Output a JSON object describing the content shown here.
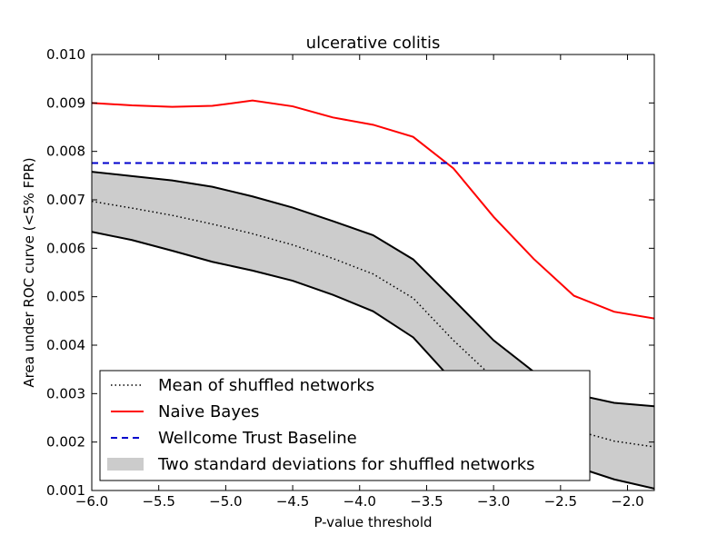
{
  "chart_data": {
    "type": "line",
    "title": "ulcerative colitis",
    "xlabel": "P-value threshold",
    "ylabel": "Area under ROC curve (<5% FPR)",
    "xlim": [
      -6.0,
      -1.8
    ],
    "ylim": [
      0.001,
      0.01
    ],
    "x_ticks": [
      -6.0,
      -5.5,
      -5.0,
      -4.5,
      -4.0,
      -3.5,
      -3.0,
      -2.5,
      -2.0
    ],
    "x_tick_labels": [
      "−6.0",
      "−5.5",
      "−5.0",
      "−4.5",
      "−4.0",
      "−3.5",
      "−3.0",
      "−2.5",
      "−2.0"
    ],
    "y_ticks": [
      0.001,
      0.002,
      0.003,
      0.004,
      0.005,
      0.006,
      0.007,
      0.008,
      0.009,
      0.01
    ],
    "y_tick_labels": [
      "0.001",
      "0.002",
      "0.003",
      "0.004",
      "0.005",
      "0.006",
      "0.007",
      "0.008",
      "0.009",
      "0.010"
    ],
    "grid": false,
    "legend_position": "lower-left",
    "series": [
      {
        "name": "Mean of shuffled networks",
        "style": "dotted",
        "color": "#000000",
        "x": [
          -6.0,
          -5.7,
          -5.4,
          -5.1,
          -4.8,
          -4.5,
          -4.2,
          -3.9,
          -3.6,
          -3.3,
          -3.0,
          -2.7,
          -2.4,
          -2.1,
          -1.8
        ],
        "y": [
          0.00697,
          0.00683,
          0.00668,
          0.0065,
          0.0063,
          0.00607,
          0.00579,
          0.00547,
          0.00497,
          0.0041,
          0.00332,
          0.00265,
          0.00225,
          0.00202,
          0.0019
        ]
      },
      {
        "name": "Naive Bayes",
        "style": "solid",
        "color": "#ff0000",
        "x": [
          -6.0,
          -5.7,
          -5.4,
          -5.1,
          -4.8,
          -4.5,
          -4.2,
          -3.9,
          -3.6,
          -3.3,
          -3.0,
          -2.7,
          -2.4,
          -2.1,
          -1.8
        ],
        "y": [
          0.009,
          0.00895,
          0.00892,
          0.00894,
          0.00905,
          0.00893,
          0.0087,
          0.00855,
          0.0083,
          0.00765,
          0.00665,
          0.00578,
          0.00502,
          0.00469,
          0.00455
        ]
      },
      {
        "name": "Wellcome Trust Baseline",
        "style": "dashed",
        "color": "#0000cc",
        "x": [
          -6.0,
          -1.8
        ],
        "y": [
          0.00776,
          0.00776
        ]
      }
    ],
    "band": {
      "name": "Two standard deviations for shuffled networks",
      "fill": "#cccccc",
      "x": [
        -6.0,
        -5.7,
        -5.4,
        -5.1,
        -4.8,
        -4.5,
        -4.2,
        -3.9,
        -3.6,
        -3.3,
        -3.0,
        -2.7,
        -2.4,
        -2.1,
        -1.8
      ],
      "upper": [
        0.00758,
        0.00749,
        0.0074,
        0.00727,
        0.00707,
        0.00684,
        0.00656,
        0.00627,
        0.00577,
        0.00494,
        0.0041,
        0.00345,
        0.00299,
        0.00281,
        0.00274
      ],
      "lower": [
        0.00634,
        0.00617,
        0.00595,
        0.00572,
        0.00554,
        0.00533,
        0.00504,
        0.0047,
        0.00416,
        0.00325,
        0.00252,
        0.00192,
        0.0015,
        0.00123,
        0.00104
      ]
    }
  }
}
